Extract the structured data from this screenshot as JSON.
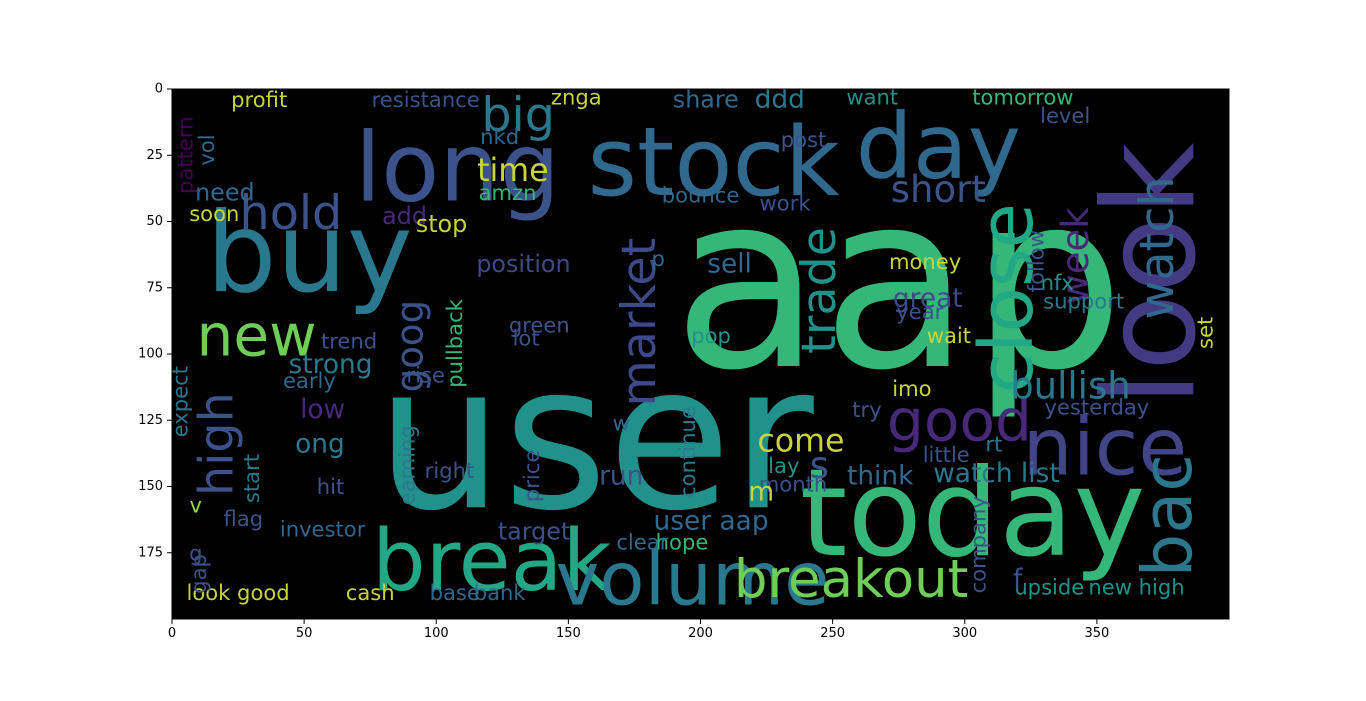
{
  "chart_data": {
    "type": "image",
    "xlim": [
      0,
      400
    ],
    "ylim": [
      200,
      0
    ],
    "x_ticks": [
      0,
      50,
      100,
      150,
      200,
      250,
      300,
      350
    ],
    "y_ticks": [
      0,
      25,
      50,
      75,
      100,
      125,
      150,
      175
    ],
    "colors": {
      "background": "#000000",
      "palette": [
        "#440154",
        "#3b528b",
        "#21918c",
        "#35b779",
        "#8fd744",
        "#c8d43a"
      ]
    },
    "words": [
      {
        "text": "aap",
        "x": 275,
        "y": 73,
        "size": 92,
        "color": "#35b779",
        "rotate": 0
      },
      {
        "text": "user",
        "x": 160,
        "y": 132,
        "size": 76,
        "color": "#21918c",
        "rotate": 0
      },
      {
        "text": "long",
        "x": 108,
        "y": 30,
        "size": 36,
        "color": "#3b528b",
        "rotate": 0
      },
      {
        "text": "stock",
        "x": 205,
        "y": 28,
        "size": 36,
        "color": "#31688e",
        "rotate": 0
      },
      {
        "text": "day",
        "x": 290,
        "y": 22,
        "size": 34,
        "color": "#31688e",
        "rotate": 0
      },
      {
        "text": "buy",
        "x": 52,
        "y": 62,
        "size": 42,
        "color": "#2a788e",
        "rotate": 0
      },
      {
        "text": "look",
        "x": 370,
        "y": 70,
        "size": 48,
        "color": "#443a83",
        "rotate": -90
      },
      {
        "text": "today",
        "x": 303,
        "y": 160,
        "size": 46,
        "color": "#35b779",
        "rotate": 0
      },
      {
        "text": "break",
        "x": 121,
        "y": 178,
        "size": 32,
        "color": "#22a884",
        "rotate": 0
      },
      {
        "text": "volume",
        "x": 197,
        "y": 185,
        "size": 28,
        "color": "#2a788e",
        "rotate": 0
      },
      {
        "text": "new",
        "x": 32,
        "y": 93,
        "size": 22,
        "color": "#6ece58",
        "rotate": 0
      },
      {
        "text": "nice",
        "x": 353,
        "y": 135,
        "size": 30,
        "color": "#414487",
        "rotate": 0
      },
      {
        "text": "bac",
        "x": 377,
        "y": 161,
        "size": 26,
        "color": "#2a788e",
        "rotate": -90
      },
      {
        "text": "breakout",
        "x": 257,
        "y": 185,
        "size": 20,
        "color": "#6ece58",
        "rotate": 0
      },
      {
        "text": "close",
        "x": 316,
        "y": 79,
        "size": 28,
        "color": "#22a884",
        "rotate": -90
      },
      {
        "text": "good",
        "x": 298,
        "y": 125,
        "size": 22,
        "color": "#482878",
        "rotate": 0
      },
      {
        "text": "hold",
        "x": 45,
        "y": 47,
        "size": 18,
        "color": "#3b528b",
        "rotate": 0
      },
      {
        "text": "big",
        "x": 131,
        "y": 10,
        "size": 18,
        "color": "#2a788e",
        "rotate": 0
      },
      {
        "text": "market",
        "x": 177,
        "y": 88,
        "size": 18,
        "color": "#3e4989",
        "rotate": -90
      },
      {
        "text": "trade",
        "x": 245,
        "y": 76,
        "size": 18,
        "color": "#21918c",
        "rotate": -90
      },
      {
        "text": "watch",
        "x": 373,
        "y": 60,
        "size": 18,
        "color": "#31688e",
        "rotate": -90
      },
      {
        "text": "week",
        "x": 342,
        "y": 63,
        "size": 14,
        "color": "#482878",
        "rotate": -90
      },
      {
        "text": "short",
        "x": 290,
        "y": 38,
        "size": 14,
        "color": "#3b528b",
        "rotate": 0
      },
      {
        "text": "high",
        "x": 17,
        "y": 134,
        "size": 18,
        "color": "#3b528b",
        "rotate": -90
      },
      {
        "text": "goog",
        "x": 90,
        "y": 97,
        "size": 14,
        "color": "#3b528b",
        "rotate": -90
      },
      {
        "text": "time",
        "x": 129,
        "y": 31,
        "size": 12,
        "color": "#c8d43a",
        "rotate": 0
      },
      {
        "text": "bullish",
        "x": 340,
        "y": 112,
        "size": 14,
        "color": "#2a788e",
        "rotate": 0
      },
      {
        "text": "come",
        "x": 238,
        "y": 133,
        "size": 12,
        "color": "#c8d43a",
        "rotate": 0
      },
      {
        "text": "strong",
        "x": 60,
        "y": 104,
        "size": 10,
        "color": "#2a788e",
        "rotate": 0
      },
      {
        "text": "watch list",
        "x": 312,
        "y": 145,
        "size": 10,
        "color": "#2a788e",
        "rotate": 0
      },
      {
        "text": "user aap",
        "x": 204,
        "y": 163,
        "size": 10,
        "color": "#31688e",
        "rotate": 0
      },
      {
        "text": "great",
        "x": 286,
        "y": 79,
        "size": 10,
        "color": "#3e4989",
        "rotate": 0
      },
      {
        "text": "position",
        "x": 133,
        "y": 66,
        "size": 9,
        "color": "#3e4989",
        "rotate": 0
      },
      {
        "text": "sell",
        "x": 211,
        "y": 66,
        "size": 10,
        "color": "#31688e",
        "rotate": 0
      },
      {
        "text": "profit",
        "x": 33,
        "y": 4,
        "size": 8,
        "color": "#c8d43a",
        "rotate": 0
      },
      {
        "text": "resistance",
        "x": 96,
        "y": 4,
        "size": 8,
        "color": "#3b528b",
        "rotate": 0
      },
      {
        "text": "share",
        "x": 202,
        "y": 4,
        "size": 9,
        "color": "#31688e",
        "rotate": 0
      },
      {
        "text": "ddd",
        "x": 230,
        "y": 4,
        "size": 10,
        "color": "#2a788e",
        "rotate": 0
      },
      {
        "text": "want",
        "x": 265,
        "y": 3,
        "size": 8,
        "color": "#21918c",
        "rotate": 0
      },
      {
        "text": "tomorrow",
        "x": 322,
        "y": 3,
        "size": 8,
        "color": "#35b779",
        "rotate": 0
      },
      {
        "text": "need",
        "x": 20,
        "y": 39,
        "size": 9,
        "color": "#31688e",
        "rotate": 0
      },
      {
        "text": "add",
        "x": 88,
        "y": 48,
        "size": 9,
        "color": "#482878",
        "rotate": 0
      },
      {
        "text": "stop",
        "x": 102,
        "y": 51,
        "size": 9,
        "color": "#c8d43a",
        "rotate": 0
      },
      {
        "text": "bounce",
        "x": 200,
        "y": 40,
        "size": 8,
        "color": "#31688e",
        "rotate": 0
      },
      {
        "text": "pullback",
        "x": 107,
        "y": 96,
        "size": 8,
        "color": "#35b779",
        "rotate": -90
      },
      {
        "text": "trend",
        "x": 67,
        "y": 95,
        "size": 8,
        "color": "#3b528b",
        "rotate": 0
      },
      {
        "text": "green",
        "x": 139,
        "y": 89,
        "size": 8,
        "color": "#3b528b",
        "rotate": 0
      },
      {
        "text": "lot",
        "x": 134,
        "y": 94,
        "size": 8,
        "color": "#3b528b",
        "rotate": 0
      },
      {
        "text": "pop",
        "x": 204,
        "y": 93,
        "size": 8,
        "color": "#21918c",
        "rotate": 0
      },
      {
        "text": "early",
        "x": 52,
        "y": 110,
        "size": 8,
        "color": "#31688e",
        "rotate": 0
      },
      {
        "text": "rise",
        "x": 96,
        "y": 108,
        "size": 8,
        "color": "#3b528b",
        "rotate": 0
      },
      {
        "text": "low",
        "x": 57,
        "y": 121,
        "size": 10,
        "color": "#482878",
        "rotate": 0
      },
      {
        "text": "earning",
        "x": 89,
        "y": 142,
        "size": 8,
        "color": "#2a788e",
        "rotate": -90
      },
      {
        "text": "price",
        "x": 136,
        "y": 146,
        "size": 8,
        "color": "#3b528b",
        "rotate": -90
      },
      {
        "text": "continue",
        "x": 195,
        "y": 137,
        "size": 8,
        "color": "#2a788e",
        "rotate": -90
      },
      {
        "text": "run",
        "x": 170,
        "y": 146,
        "size": 10,
        "color": "#3b528b",
        "rotate": 0
      },
      {
        "text": "play",
        "x": 229,
        "y": 142,
        "size": 8,
        "color": "#21918c",
        "rotate": 0
      },
      {
        "text": "think",
        "x": 268,
        "y": 146,
        "size": 10,
        "color": "#31688e",
        "rotate": 0
      },
      {
        "text": "month",
        "x": 235,
        "y": 149,
        "size": 8,
        "color": "#3b528b",
        "rotate": 0
      },
      {
        "text": "rt",
        "x": 311,
        "y": 134,
        "size": 8,
        "color": "#2a788e",
        "rotate": 0
      },
      {
        "text": "little",
        "x": 293,
        "y": 138,
        "size": 8,
        "color": "#3b528b",
        "rotate": 0
      },
      {
        "text": "right",
        "x": 105,
        "y": 144,
        "size": 8,
        "color": "#3b528b",
        "rotate": 0
      },
      {
        "text": "hit",
        "x": 60,
        "y": 150,
        "size": 8,
        "color": "#3b528b",
        "rotate": 0
      },
      {
        "text": "start",
        "x": 30,
        "y": 147,
        "size": 8,
        "color": "#2a788e",
        "rotate": -90
      },
      {
        "text": "flag",
        "x": 27,
        "y": 162,
        "size": 8,
        "color": "#3b528b",
        "rotate": 0
      },
      {
        "text": "investor",
        "x": 57,
        "y": 166,
        "size": 8,
        "color": "#31688e",
        "rotate": 0
      },
      {
        "text": "target",
        "x": 137,
        "y": 167,
        "size": 9,
        "color": "#3b528b",
        "rotate": 0
      },
      {
        "text": "hope",
        "x": 193,
        "y": 171,
        "size": 8,
        "color": "#35b779",
        "rotate": 0
      },
      {
        "text": "clear",
        "x": 178,
        "y": 171,
        "size": 8,
        "color": "#31688e",
        "rotate": 0
      },
      {
        "text": "company",
        "x": 305,
        "y": 172,
        "size": 8,
        "color": "#3b528b",
        "rotate": -90
      },
      {
        "text": "upside",
        "x": 332,
        "y": 188,
        "size": 8,
        "color": "#21918c",
        "rotate": 0
      },
      {
        "text": "new high",
        "x": 365,
        "y": 188,
        "size": 8,
        "color": "#21918c",
        "rotate": 0
      },
      {
        "text": "look good",
        "x": 25,
        "y": 190,
        "size": 8,
        "color": "#c8d43a",
        "rotate": 0
      },
      {
        "text": "cash",
        "x": 75,
        "y": 190,
        "size": 8,
        "color": "#c8d43a",
        "rotate": 0
      },
      {
        "text": "base",
        "x": 107,
        "y": 190,
        "size": 8,
        "color": "#31688e",
        "rotate": 0
      },
      {
        "text": "bank",
        "x": 124,
        "y": 190,
        "size": 8,
        "color": "#31688e",
        "rotate": 0
      },
      {
        "text": "gap",
        "x": 10,
        "y": 183,
        "size": 8,
        "color": "#3b528b",
        "rotate": -90
      },
      {
        "text": "money",
        "x": 285,
        "y": 65,
        "size": 8,
        "color": "#c8d43a",
        "rotate": 0
      },
      {
        "text": "year",
        "x": 283,
        "y": 84,
        "size": 8,
        "color": "#3b528b",
        "rotate": 0
      },
      {
        "text": "wait",
        "x": 294,
        "y": 93,
        "size": 8,
        "color": "#c8d43a",
        "rotate": 0
      },
      {
        "text": "imo",
        "x": 280,
        "y": 113,
        "size": 8,
        "color": "#c8d43a",
        "rotate": 0
      },
      {
        "text": "try",
        "x": 263,
        "y": 121,
        "size": 8,
        "color": "#3b528b",
        "rotate": 0
      },
      {
        "text": "yesterday",
        "x": 350,
        "y": 120,
        "size": 8,
        "color": "#3b528b",
        "rotate": 0
      },
      {
        "text": "support",
        "x": 345,
        "y": 80,
        "size": 8,
        "color": "#2a788e",
        "rotate": 0
      },
      {
        "text": "nfx",
        "x": 335,
        "y": 73,
        "size": 8,
        "color": "#21918c",
        "rotate": 0
      },
      {
        "text": "follow",
        "x": 327,
        "y": 65,
        "size": 8,
        "color": "#3b528b",
        "rotate": -90
      },
      {
        "text": "set",
        "x": 391,
        "y": 92,
        "size": 8,
        "color": "#c8d43a",
        "rotate": -90
      },
      {
        "text": "level",
        "x": 338,
        "y": 10,
        "size": 8,
        "color": "#3b528b",
        "rotate": 0
      },
      {
        "text": "post",
        "x": 239,
        "y": 19,
        "size": 8,
        "color": "#3b528b",
        "rotate": 0
      },
      {
        "text": "work",
        "x": 232,
        "y": 43,
        "size": 8,
        "color": "#3b528b",
        "rotate": 0
      },
      {
        "text": "amzn",
        "x": 127,
        "y": 39,
        "size": 8,
        "color": "#35b779",
        "rotate": 0
      },
      {
        "text": "znga",
        "x": 153,
        "y": 3,
        "size": 8,
        "color": "#c8d43a",
        "rotate": 0
      },
      {
        "text": "nkd",
        "x": 124,
        "y": 18,
        "size": 8,
        "color": "#31688e",
        "rotate": 0
      },
      {
        "text": "pattern",
        "x": 5,
        "y": 25,
        "size": 8,
        "color": "#440154",
        "rotate": -90
      },
      {
        "text": "vol",
        "x": 13,
        "y": 23,
        "size": 8,
        "color": "#31688e",
        "rotate": -90
      },
      {
        "text": "soon",
        "x": 16,
        "y": 47,
        "size": 8,
        "color": "#c8d43a",
        "rotate": 0
      },
      {
        "text": "expect",
        "x": 3,
        "y": 118,
        "size": 8,
        "color": "#2a788e",
        "rotate": -90
      },
      {
        "text": "ong",
        "x": 56,
        "y": 134,
        "size": 10,
        "color": "#2a788e",
        "rotate": 0
      },
      {
        "text": "s",
        "x": 245,
        "y": 142,
        "size": 14,
        "color": "#3b528b",
        "rotate": 0
      },
      {
        "text": "m",
        "x": 223,
        "y": 152,
        "size": 10,
        "color": "#c8d43a",
        "rotate": 0
      },
      {
        "text": "w",
        "x": 170,
        "y": 126,
        "size": 8,
        "color": "#31688e",
        "rotate": 0
      },
      {
        "text": "p",
        "x": 184,
        "y": 64,
        "size": 8,
        "color": "#31688e",
        "rotate": 0
      },
      {
        "text": "f",
        "x": 320,
        "y": 185,
        "size": 10,
        "color": "#3b528b",
        "rotate": 0
      },
      {
        "text": "v",
        "x": 9,
        "y": 157,
        "size": 8,
        "color": "#8fd744",
        "rotate": 0
      },
      {
        "text": "g",
        "x": 9,
        "y": 175,
        "size": 8,
        "color": "#3b528b",
        "rotate": 0
      }
    ]
  }
}
